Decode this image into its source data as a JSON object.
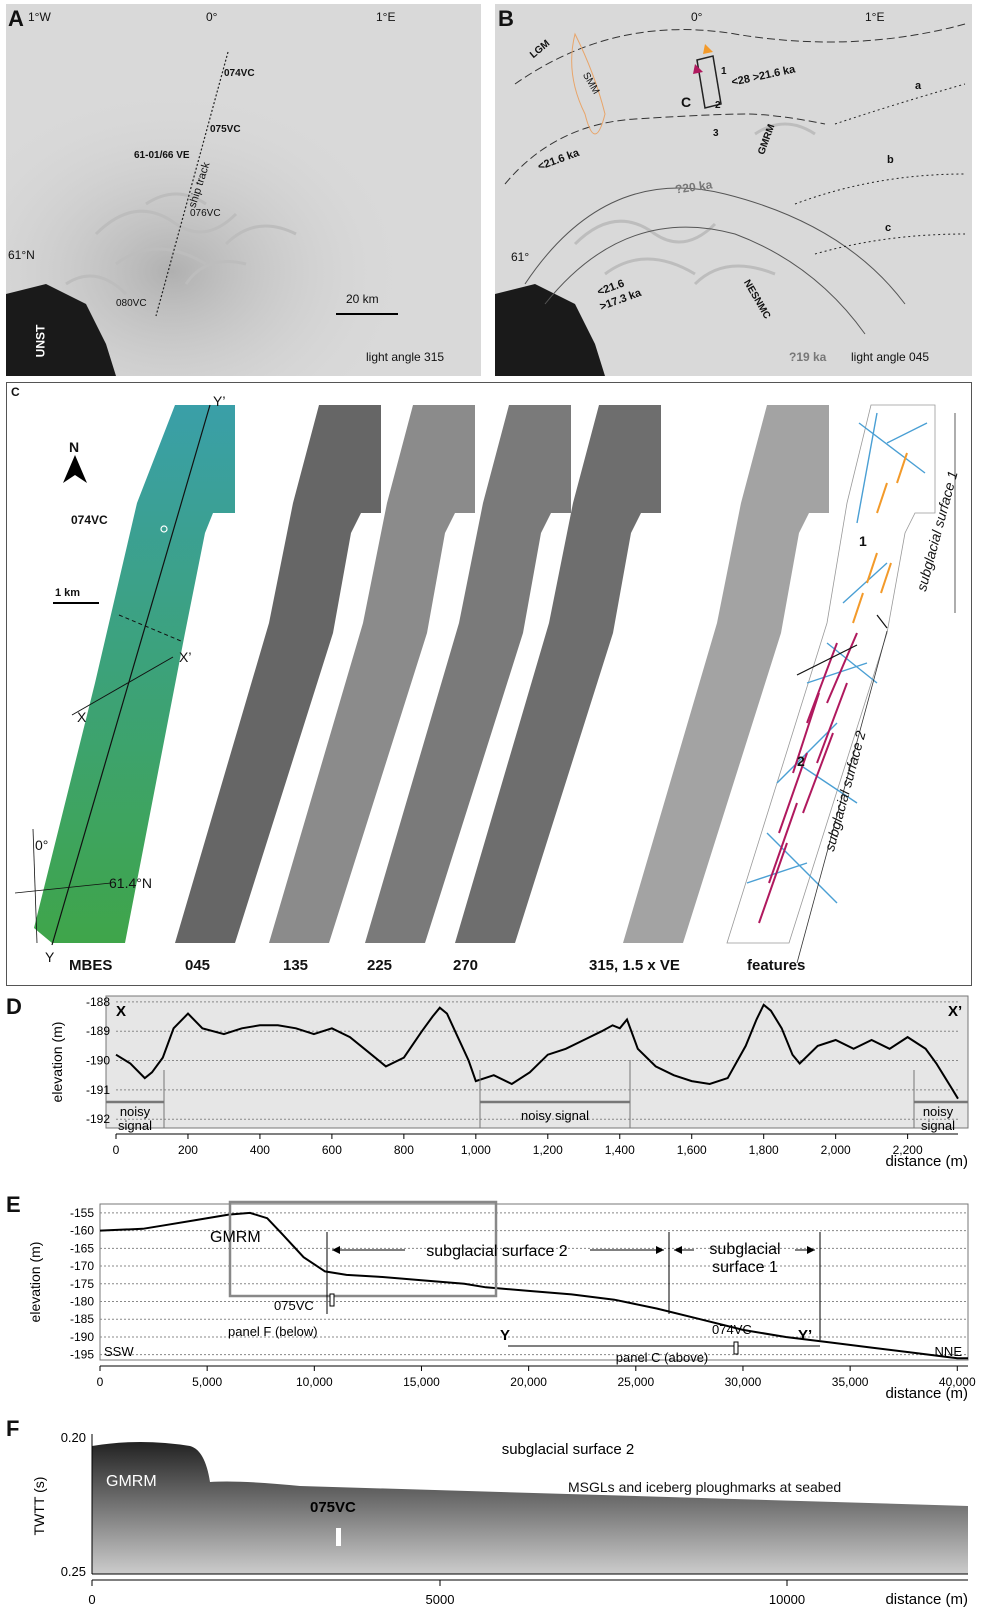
{
  "panelA": {
    "letter": "A",
    "lon_labels": [
      "1°W",
      "0°",
      "1°E"
    ],
    "lat_label": "61°N",
    "cores": [
      "074VC",
      "075VC",
      "61-01/66 VE",
      "076VC",
      "080VC"
    ],
    "ship_track": "ship track",
    "scale": "20 km",
    "land": "UNST",
    "light": "light angle 315"
  },
  "panelB": {
    "letter": "B",
    "lon_labels": [
      "0°",
      "1°E"
    ],
    "lat_label": "61°",
    "labels": {
      "lgm": "LGM",
      "smm": "SMM",
      "gmrm": "GMRM",
      "nesnmc": "NESNMC",
      "c": "C",
      "n1": "1",
      "n2": "2",
      "n3": "3",
      "a": "a",
      "b": "b",
      "cc": "c"
    },
    "ages": {
      "a28": "<28 >21.6 ka",
      "a216": "<21.6 ka",
      "a20": "?20 ka",
      "a216b": "<21.6",
      "a173": ">17.3 ka",
      "a19": "?19 ka"
    },
    "light": "light angle 045"
  },
  "panelC": {
    "letter": "C",
    "north": "N",
    "core": "074VC",
    "scale": "1 km",
    "x": "X",
    "xp": "X’",
    "y": "Y",
    "yp": "Y’",
    "lon": "0°",
    "lat": "61.4°N",
    "strip_labels": [
      "MBES",
      "045",
      "135",
      "225",
      "270",
      "315, 1.5 x VE",
      "features"
    ],
    "surface1": "subglacial surface 1",
    "surface2": "subglacial surface 2",
    "n1": "1",
    "n2": "2",
    "colors": {
      "blue": "#4a9fd4",
      "orange": "#f39a2a",
      "magenta": "#b0195e"
    }
  },
  "panelD": {
    "letter": "D",
    "x": "X",
    "xp": "X’",
    "ylabel": "elevation (m)",
    "xlabel": "distance (m)",
    "yticks": [
      "-188",
      "-189",
      "-190",
      "-191",
      "-192"
    ],
    "xticks": [
      "0",
      "200",
      "400",
      "600",
      "800",
      "1,000",
      "1,200",
      "1,400",
      "1,600",
      "1,800",
      "2,000",
      "2,200"
    ],
    "noisy1": [
      "noisy",
      "signal"
    ],
    "noisy2": "noisy signal",
    "noisy3": [
      "noisy",
      "signal"
    ]
  },
  "panelE": {
    "letter": "E",
    "ylabel": "elevation (m)",
    "xlabel": "distance (m)",
    "yticks": [
      "-155",
      "-160",
      "-165",
      "-170",
      "-175",
      "-180",
      "-185",
      "-190",
      "-195"
    ],
    "xticks": [
      "0",
      "5,000",
      "10,000",
      "15,000",
      "20,000",
      "25,000",
      "30,000",
      "35,000",
      "40,000"
    ],
    "gmrm": "GMRM",
    "surf2": "subglacial surface 2",
    "surf1": [
      "subglacial",
      "surface 1"
    ],
    "core1": "075VC",
    "core2": "074VC",
    "panelF": "panel F (below)",
    "panelC": "panel C (above)",
    "y": "Y",
    "yp": "Y’",
    "ssw": "SSW",
    "nne": "NNE"
  },
  "panelF": {
    "letter": "F",
    "ylabel": "TWTT (s)",
    "yticks": [
      "0.20",
      "0.25"
    ],
    "xticks": [
      "0",
      "5000",
      "10000"
    ],
    "xlabel": "distance (m)",
    "title": "subglacial surface 2",
    "gmrm": "GMRM",
    "core": "075VC",
    "note": "MSGLs and iceberg ploughmarks at seabed"
  },
  "chart_data": [
    {
      "type": "line",
      "panel": "D",
      "xlabel": "distance (m)",
      "ylabel": "elevation (m)",
      "xlim": [
        0,
        2340
      ],
      "ylim": [
        -192.3,
        -187.8
      ],
      "x": [
        0,
        40,
        80,
        100,
        130,
        160,
        200,
        240,
        300,
        350,
        400,
        450,
        500,
        550,
        600,
        650,
        700,
        750,
        800,
        850,
        880,
        900,
        920,
        950,
        980,
        1000,
        1050,
        1100,
        1150,
        1200,
        1250,
        1300,
        1350,
        1380,
        1400,
        1420,
        1450,
        1500,
        1550,
        1600,
        1650,
        1700,
        1750,
        1780,
        1800,
        1820,
        1850,
        1880,
        1900,
        1950,
        2000,
        2050,
        2100,
        2150,
        2200,
        2250,
        2280,
        2300,
        2320,
        2340
      ],
      "y": [
        -189.8,
        -190.1,
        -190.6,
        -190.4,
        -189.9,
        -188.9,
        -188.4,
        -188.9,
        -189.1,
        -188.9,
        -188.8,
        -188.8,
        -188.9,
        -189.1,
        -188.9,
        -189.2,
        -189.7,
        -190.2,
        -189.9,
        -189.0,
        -188.5,
        -188.2,
        -188.4,
        -189.2,
        -190.0,
        -190.7,
        -190.5,
        -190.8,
        -190.4,
        -189.8,
        -189.6,
        -189.3,
        -189.0,
        -188.8,
        -188.9,
        -188.6,
        -189.6,
        -190.2,
        -190.5,
        -190.7,
        -190.8,
        -190.6,
        -189.5,
        -188.6,
        -188.1,
        -188.3,
        -188.9,
        -189.8,
        -190.1,
        -189.5,
        -189.3,
        -189.6,
        -189.3,
        -189.6,
        -189.2,
        -189.6,
        -190.1,
        -190.5,
        -190.9,
        -191.3
      ],
      "ticks_x": [
        0,
        200,
        400,
        600,
        800,
        1000,
        1200,
        1400,
        1600,
        1800,
        2000,
        2200
      ],
      "ticks_y": [
        -188,
        -189,
        -190,
        -191,
        -192
      ]
    },
    {
      "type": "line",
      "panel": "E",
      "xlabel": "distance (m)",
      "ylabel": "elevation (m)",
      "xlim": [
        0,
        40500
      ],
      "ylim": [
        -196.5,
        -152.5
      ],
      "x": [
        0,
        2000,
        3000,
        4500,
        6000,
        7000,
        7800,
        8500,
        9500,
        10500,
        11500,
        13000,
        15000,
        17000,
        18000,
        20000,
        22000,
        24000,
        26000,
        28000,
        30000,
        32000,
        34000,
        36000,
        38000,
        40000,
        40500
      ],
      "y": [
        -160,
        -159.5,
        -158.5,
        -157,
        -155.5,
        -155,
        -156.5,
        -161,
        -167.5,
        -171.5,
        -172.5,
        -173,
        -174,
        -175,
        -176,
        -177,
        -178,
        -179.5,
        -182,
        -185,
        -188,
        -190,
        -191.5,
        -193,
        -194.5,
        -196,
        -196
      ],
      "ticks_x": [
        0,
        5000,
        10000,
        15000,
        20000,
        25000,
        30000,
        35000,
        40000
      ],
      "ticks_y": [
        -155,
        -160,
        -165,
        -170,
        -175,
        -180,
        -185,
        -190,
        -195
      ]
    }
  ]
}
